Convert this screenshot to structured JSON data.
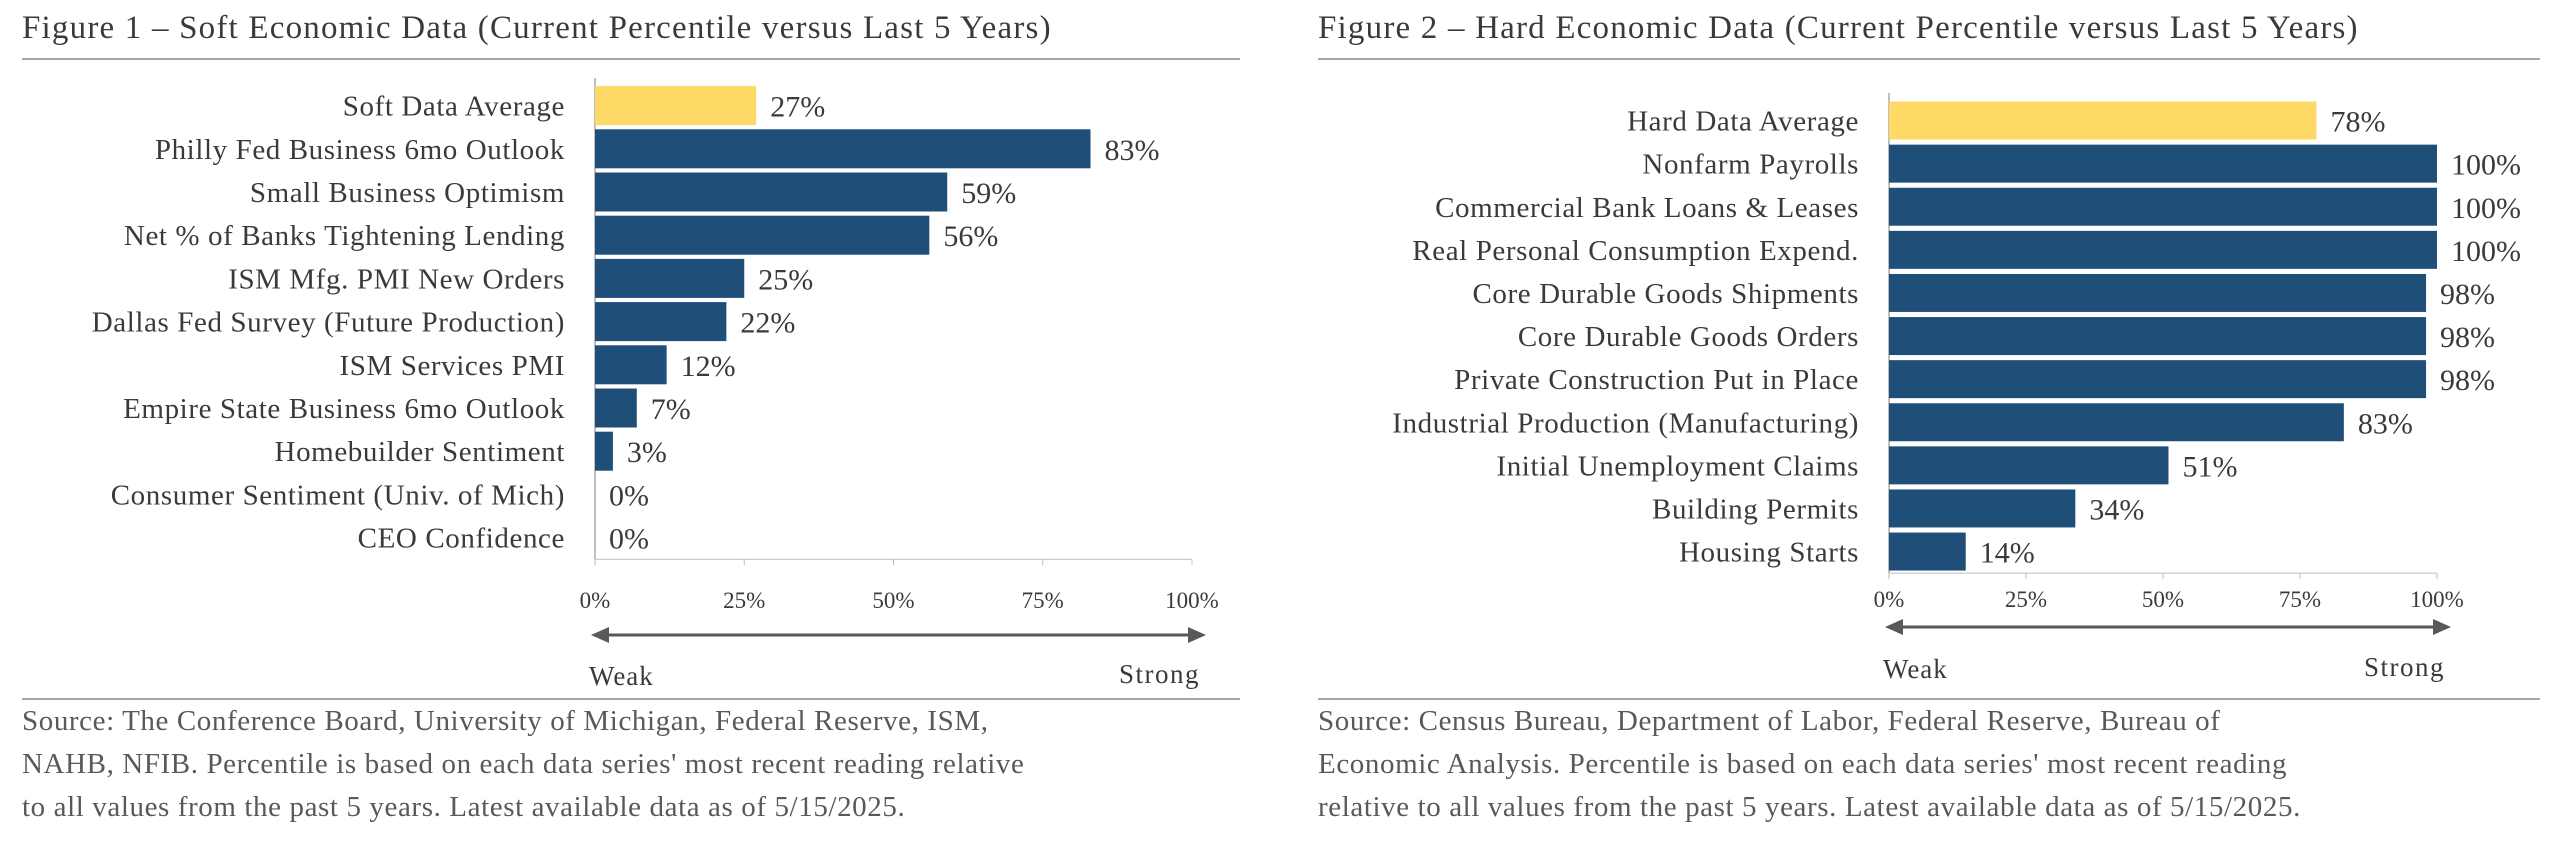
{
  "chart_data": [
    {
      "type": "bar",
      "orientation": "horizontal",
      "title": "Figure 1 – Soft Economic Data (Current Percentile versus Last 5 Years)",
      "categories": [
        "Soft Data Average",
        "Philly Fed Business 6mo Outlook",
        "Small Business Optimism",
        "Net % of Banks Tightening Lending",
        "ISM Mfg. PMI New Orders",
        "Dallas Fed Survey (Future Production)",
        "ISM Services PMI",
        "Empire State Business 6mo Outlook",
        "Homebuilder Sentiment",
        "Consumer Sentiment (Univ. of Mich)",
        "CEO Confidence"
      ],
      "values": [
        27,
        83,
        59,
        56,
        25,
        22,
        12,
        7,
        3,
        0,
        0
      ],
      "value_labels": [
        "27%",
        "83%",
        "59%",
        "56%",
        "25%",
        "22%",
        "12%",
        "7%",
        "3%",
        "0%",
        "0%"
      ],
      "highlight_index": 0,
      "xlim": [
        0,
        100
      ],
      "xticks": [
        "0%",
        "25%",
        "50%",
        "75%",
        "100%"
      ],
      "arrow_left_label": "Weak",
      "arrow_right_label": "Strong",
      "source": [
        "Source: The Conference Board, University of Michigan, Federal Reserve, ISM,",
        "NAHB, NFIB. Percentile is based on each data series' most recent reading relative",
        "to all values from the past 5 years. Latest available data as of 5/15/2025."
      ]
    },
    {
      "type": "bar",
      "orientation": "horizontal",
      "title": "Figure 2 – Hard Economic Data (Current Percentile versus Last 5 Years)",
      "categories": [
        "Hard Data Average",
        "Nonfarm Payrolls",
        "Commercial Bank Loans & Leases",
        "Real Personal Consumption Expend.",
        "Core Durable Goods Shipments",
        "Core Durable Goods Orders",
        "Private Construction Put in Place",
        "Industrial Production (Manufacturing)",
        "Initial Unemployment Claims",
        "Building Permits",
        "Housing Starts"
      ],
      "values": [
        78,
        100,
        100,
        100,
        98,
        98,
        98,
        83,
        51,
        34,
        14
      ],
      "value_labels": [
        "78%",
        "100%",
        "100%",
        "100%",
        "98%",
        "98%",
        "98%",
        "83%",
        "51%",
        "34%",
        "14%"
      ],
      "highlight_index": 0,
      "xlim": [
        0,
        100
      ],
      "xticks": [
        "0%",
        "25%",
        "50%",
        "75%",
        "100%"
      ],
      "arrow_left_label": "Weak",
      "arrow_right_label": "Strong",
      "source": [
        "Source: Census Bureau, Department of Labor, Federal Reserve, Bureau of",
        "Economic Analysis. Percentile is based on each data series' most recent reading",
        "relative to all values from the past 5 years. Latest available data as of 5/15/2025."
      ]
    }
  ],
  "colors": {
    "bar": "#1f4e79",
    "highlight": "#ffd966",
    "axis": "#bfbfbf",
    "arrow": "#595959",
    "text": "#3a3a3a"
  }
}
